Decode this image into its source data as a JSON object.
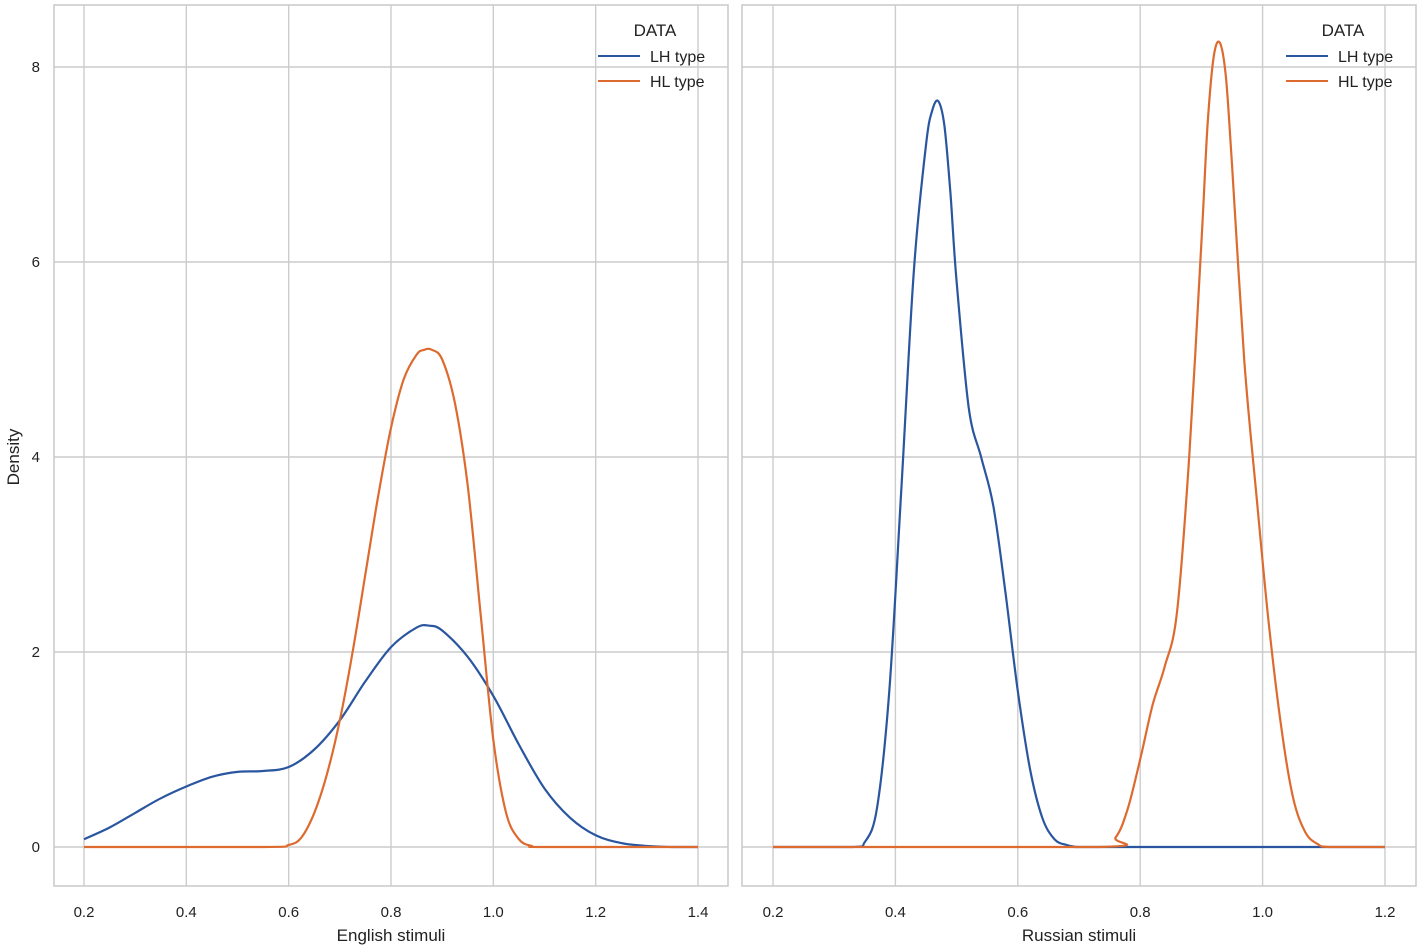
{
  "colors": {
    "lh": "#2a56a0",
    "hl": "#dd6b2f",
    "grid": "#cccccc"
  },
  "ylabel": "Density",
  "panels": [
    {
      "xlabel": "English stimuli",
      "legend": {
        "title": "DATA",
        "items": [
          "LH type",
          "HL type"
        ]
      },
      "xticks": [
        "0.2",
        "0.4",
        "0.6",
        "0.8",
        "1.0",
        "1.2",
        "1.4"
      ],
      "yticks": [
        "0",
        "2",
        "4",
        "6",
        "8"
      ]
    },
    {
      "xlabel": "Russian stimuli",
      "legend": {
        "title": "DATA",
        "items": [
          "LH type",
          "HL type"
        ]
      },
      "xticks": [
        "0.2",
        "0.4",
        "0.6",
        "0.8",
        "1.0",
        "1.2"
      ],
      "yticks": []
    }
  ],
  "chart_data": [
    {
      "type": "line",
      "title": "",
      "xlabel": "English stimuli",
      "ylabel": "Density",
      "xlim": [
        0.2,
        1.4
      ],
      "ylim": [
        -0.4,
        8.4
      ],
      "grid": true,
      "legend_title": "DATA",
      "legend_position": "upper right",
      "series": [
        {
          "name": "LH type",
          "color": "#2a56a0",
          "x": [
            0.2,
            0.25,
            0.3,
            0.35,
            0.4,
            0.45,
            0.5,
            0.55,
            0.6,
            0.65,
            0.7,
            0.75,
            0.8,
            0.85,
            0.875,
            0.9,
            0.95,
            1.0,
            1.05,
            1.1,
            1.15,
            1.2,
            1.25,
            1.3,
            1.35,
            1.4
          ],
          "y": [
            0.08,
            0.2,
            0.35,
            0.5,
            0.62,
            0.72,
            0.77,
            0.78,
            0.82,
            1.0,
            1.3,
            1.7,
            2.05,
            2.25,
            2.27,
            2.22,
            1.95,
            1.55,
            1.05,
            0.6,
            0.3,
            0.12,
            0.04,
            0.01,
            0.0,
            0.0
          ]
        },
        {
          "name": "HL type",
          "color": "#dd6b2f",
          "x": [
            0.2,
            0.55,
            0.6,
            0.625,
            0.65,
            0.675,
            0.7,
            0.725,
            0.75,
            0.775,
            0.8,
            0.825,
            0.85,
            0.865,
            0.88,
            0.9,
            0.925,
            0.95,
            0.975,
            1.0,
            1.025,
            1.05,
            1.075,
            1.1,
            1.4
          ],
          "y": [
            0.0,
            0.0,
            0.02,
            0.1,
            0.35,
            0.75,
            1.3,
            2.0,
            2.8,
            3.6,
            4.3,
            4.8,
            5.05,
            5.1,
            5.1,
            5.0,
            4.55,
            3.7,
            2.4,
            1.1,
            0.35,
            0.08,
            0.01,
            0.0,
            0.0
          ]
        }
      ]
    },
    {
      "type": "line",
      "title": "",
      "xlabel": "Russian stimuli",
      "ylabel": "",
      "xlim": [
        0.2,
        1.2
      ],
      "ylim": [
        -0.4,
        8.4
      ],
      "grid": true,
      "legend_title": "DATA",
      "legend_position": "upper right",
      "series": [
        {
          "name": "LH type",
          "color": "#2a56a0",
          "x": [
            0.2,
            0.33,
            0.35,
            0.37,
            0.39,
            0.41,
            0.43,
            0.45,
            0.46,
            0.47,
            0.48,
            0.49,
            0.5,
            0.52,
            0.54,
            0.56,
            0.58,
            0.6,
            0.62,
            0.64,
            0.66,
            0.68,
            0.7,
            0.74,
            1.2
          ],
          "y": [
            0.0,
            0.0,
            0.05,
            0.4,
            1.6,
            3.7,
            5.9,
            7.2,
            7.55,
            7.65,
            7.4,
            6.7,
            5.8,
            4.5,
            4.0,
            3.5,
            2.6,
            1.6,
            0.8,
            0.3,
            0.08,
            0.02,
            0.0,
            0.0,
            0.0
          ]
        },
        {
          "name": "HL type",
          "color": "#dd6b2f",
          "x": [
            0.2,
            0.73,
            0.76,
            0.78,
            0.8,
            0.82,
            0.84,
            0.86,
            0.88,
            0.9,
            0.91,
            0.92,
            0.93,
            0.94,
            0.95,
            0.97,
            0.99,
            1.01,
            1.03,
            1.05,
            1.07,
            1.09,
            1.11,
            1.2
          ],
          "y": [
            0.0,
            0.0,
            0.1,
            0.4,
            0.9,
            1.45,
            1.85,
            2.4,
            4.0,
            6.2,
            7.4,
            8.1,
            8.25,
            7.9,
            7.0,
            5.0,
            3.6,
            2.3,
            1.25,
            0.5,
            0.15,
            0.03,
            0.0,
            0.0
          ]
        }
      ]
    }
  ]
}
